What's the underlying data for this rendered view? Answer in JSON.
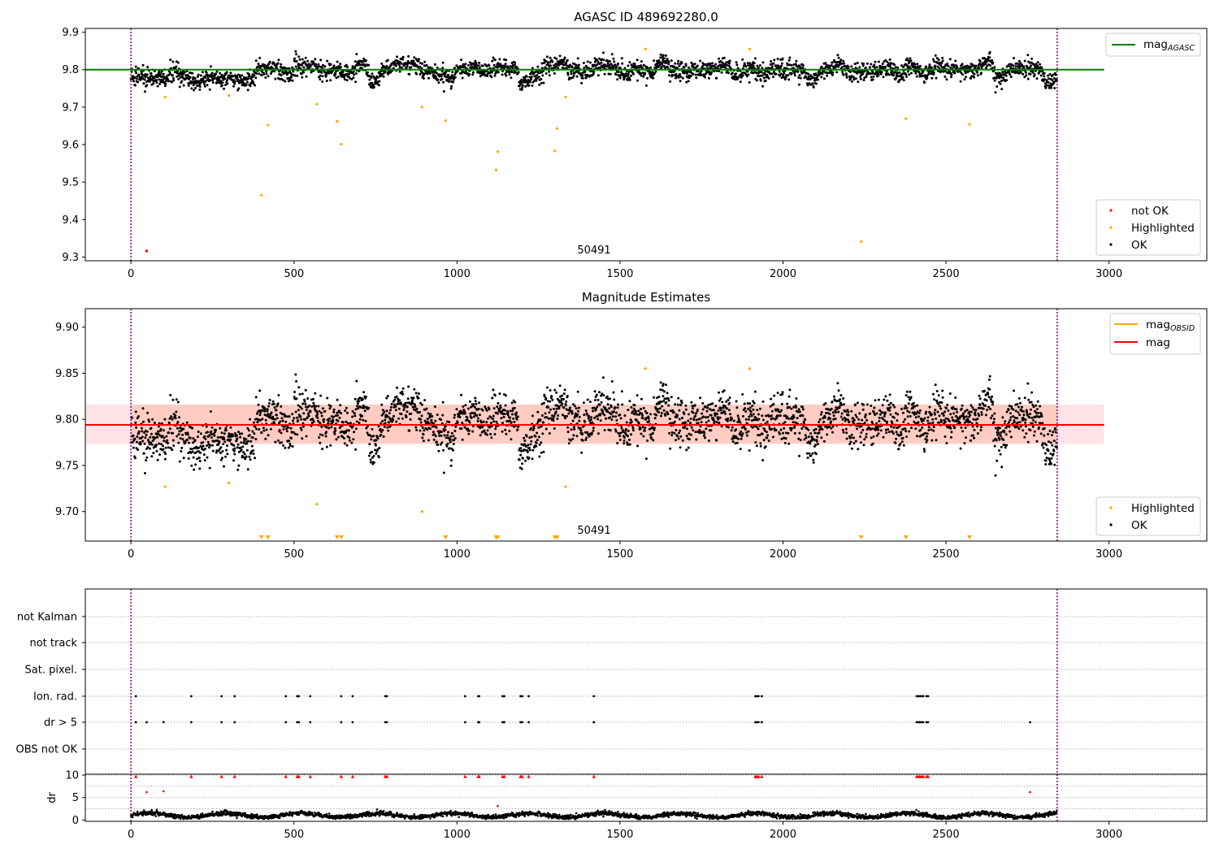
{
  "figure": {
    "title_top": "AGASC ID 489692280.0",
    "title_mid": "Magnitude Estimates",
    "obsid_label": "50491"
  },
  "colors": {
    "ok": "#000000",
    "highlighted": "#ffa500",
    "not_ok": "#ff0000",
    "mag_agasc": "#008000",
    "mag_obsid": "#ffa500",
    "mag": "#ff0000",
    "band": "#ffc0cb",
    "obs_boundary": "#800080"
  },
  "legends": {
    "top_line": {
      "label": "mag",
      "sub": "AGASC"
    },
    "top_points": [
      "not OK",
      "Highlighted",
      "OK"
    ],
    "mid_lines": [
      {
        "label": "mag",
        "sub": "OBSID"
      },
      {
        "label": "mag",
        "sub": ""
      }
    ],
    "mid_points": [
      "Highlighted",
      "OK"
    ]
  },
  "chart_data": [
    {
      "type": "scatter",
      "title": "AGASC ID 489692280.0",
      "xlim": [
        -140,
        3300
      ],
      "ylim": [
        9.29,
        9.91
      ],
      "xticks": [
        0,
        500,
        1000,
        1500,
        2000,
        2500,
        3000
      ],
      "yticks": [
        9.3,
        9.4,
        9.5,
        9.6,
        9.7,
        9.8,
        9.9
      ],
      "hlines": [
        {
          "name": "mag_AGASC",
          "y": 9.8,
          "x_range": [
            -140,
            2985
          ]
        }
      ],
      "vlines": [
        0,
        2841
      ],
      "annotation": {
        "text": "50491",
        "x": 1420,
        "y": 9.315
      },
      "ok_series": {
        "name": "OK",
        "n_points": 2841,
        "x_range": [
          0,
          2841
        ],
        "segment_means": [
          9.785,
          9.78,
          9.775,
          9.795,
          9.775,
          9.765,
          9.78,
          9.775,
          9.775,
          9.77,
          9.805,
          9.81,
          9.79,
          9.81,
          9.81,
          9.795,
          9.8,
          9.79,
          9.815,
          9.77,
          9.8,
          9.81,
          9.815,
          9.8,
          9.785,
          9.78,
          9.805,
          9.805,
          9.795,
          9.81,
          9.8,
          9.765,
          9.785,
          9.81,
          9.815,
          9.8,
          9.795,
          9.815,
          9.805,
          9.79,
          9.8,
          9.79,
          9.82,
          9.79,
          9.795,
          9.8,
          9.8,
          9.81,
          9.79,
          9.8,
          9.79,
          9.805,
          9.8,
          9.8,
          9.775,
          9.8,
          9.81,
          9.795,
          9.795,
          9.8,
          9.8,
          9.79,
          9.805,
          9.79,
          9.81,
          9.8,
          9.8,
          9.8,
          9.82,
          9.78,
          9.8,
          9.805,
          9.8,
          9.765
        ]
      },
      "highlighted_points": [
        [
          105,
          9.727
        ],
        [
          300,
          9.731
        ],
        [
          400,
          9.465
        ],
        [
          420,
          9.652
        ],
        [
          570,
          9.708
        ],
        [
          632,
          9.662
        ],
        [
          645,
          9.601
        ],
        [
          893,
          9.7
        ],
        [
          965,
          9.664
        ],
        [
          1120,
          9.532
        ],
        [
          1125,
          9.581
        ],
        [
          1300,
          9.583
        ],
        [
          1307,
          9.643
        ],
        [
          1333,
          9.727
        ],
        [
          1578,
          9.855
        ],
        [
          1898,
          9.855
        ],
        [
          2240,
          9.341
        ],
        [
          2377,
          9.669
        ],
        [
          2572,
          9.654
        ]
      ],
      "not_ok_points": [
        [
          48,
          9.316
        ]
      ]
    },
    {
      "type": "scatter",
      "title": "Magnitude Estimates",
      "xlim": [
        -140,
        3300
      ],
      "ylim": [
        9.668,
        9.92
      ],
      "xticks": [
        0,
        500,
        1000,
        1500,
        2000,
        2500,
        3000
      ],
      "yticks": [
        9.7,
        9.75,
        9.8,
        9.85,
        9.9
      ],
      "hlines": [
        {
          "name": "mag",
          "y": 9.794,
          "x_range": [
            -140,
            2985
          ]
        }
      ],
      "bands": [
        {
          "name": "mag_OBSID band",
          "y_range": [
            9.774,
            9.816
          ],
          "x_range": [
            0,
            2841
          ]
        },
        {
          "name": "mag band",
          "y_range": [
            9.773,
            9.816
          ],
          "x_range": [
            -140,
            2985
          ]
        }
      ],
      "vlines": [
        0,
        2841
      ],
      "annotation": {
        "text": "50491",
        "x": 1420,
        "y": 9.675
      },
      "highlighted_points": [
        [
          105,
          9.727
        ],
        [
          300,
          9.731
        ],
        [
          570,
          9.708
        ],
        [
          893,
          9.7
        ],
        [
          1333,
          9.727
        ],
        [
          1578,
          9.855
        ],
        [
          1898,
          9.855
        ]
      ],
      "highlighted_offscale_markers": [
        400,
        420,
        632,
        645,
        965,
        1120,
        1125,
        1300,
        1307,
        2240,
        2377,
        2572
      ]
    },
    {
      "type": "scatter",
      "title": "",
      "xlim": [
        -140,
        3300
      ],
      "category_rows": [
        "not Kalman",
        "not track",
        "Sat. pixel.",
        "Ion. rad.",
        "dr > 5",
        "OBS not OK"
      ],
      "flag_points": {
        "Ion. rad.": [
          15,
          185,
          278,
          318,
          475,
          510,
          515,
          550,
          645,
          680,
          780,
          785,
          1025,
          1065,
          1068,
          1140,
          1145,
          1195,
          1200,
          1220,
          1420,
          1915,
          1920,
          1925,
          1935,
          2410,
          2415,
          2420,
          2425,
          2430,
          2440,
          2445
        ],
        "dr > 5": [
          15,
          48,
          100,
          185,
          278,
          318,
          475,
          510,
          515,
          550,
          645,
          680,
          780,
          785,
          1025,
          1065,
          1068,
          1140,
          1145,
          1195,
          1200,
          1220,
          1420,
          1915,
          1920,
          1925,
          1935,
          2410,
          2415,
          2420,
          2425,
          2430,
          2440,
          2445,
          2758
        ]
      },
      "vlines": [
        0,
        2841
      ]
    },
    {
      "type": "scatter",
      "title": "",
      "xlim": [
        -140,
        3300
      ],
      "ylim": [
        -0.3,
        10.2
      ],
      "xticks": [
        0,
        500,
        1000,
        1500,
        2000,
        2500,
        3000
      ],
      "yticks": [
        0,
        5,
        10
      ],
      "ylabel": "dr",
      "dr_series": {
        "name": "dr",
        "n_points": 2841,
        "typical_range": [
          0.3,
          2.2
        ]
      },
      "dr_capped_markers": [
        15,
        185,
        278,
        318,
        475,
        510,
        515,
        550,
        645,
        680,
        780,
        785,
        1025,
        1065,
        1068,
        1140,
        1145,
        1195,
        1200,
        1220,
        1420,
        1915,
        1920,
        1925,
        1935,
        2410,
        2415,
        2420,
        2425,
        2430,
        2440,
        2445
      ],
      "dr_large_points": [
        [
          48,
          6.2
        ],
        [
          100,
          6.4
        ],
        [
          1125,
          3.1
        ],
        [
          2758,
          6.2
        ]
      ],
      "vlines": [
        0,
        2841
      ]
    }
  ]
}
